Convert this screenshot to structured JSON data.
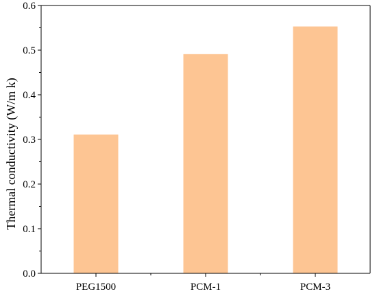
{
  "chart_data": {
    "type": "bar",
    "categories": [
      "PEG1500",
      "PCM-1",
      "PCM-3"
    ],
    "values": [
      0.311,
      0.491,
      0.553
    ],
    "xlabel": "",
    "ylabel": "Thermal conductivity (W/m k)",
    "ylim": [
      0,
      0.6
    ],
    "yticks": [
      "0.0",
      "0.1",
      "0.2",
      "0.3",
      "0.4",
      "0.5",
      "0.6"
    ],
    "yminor_step": 0.05,
    "grid": false,
    "bar_color": "#FDC593"
  }
}
